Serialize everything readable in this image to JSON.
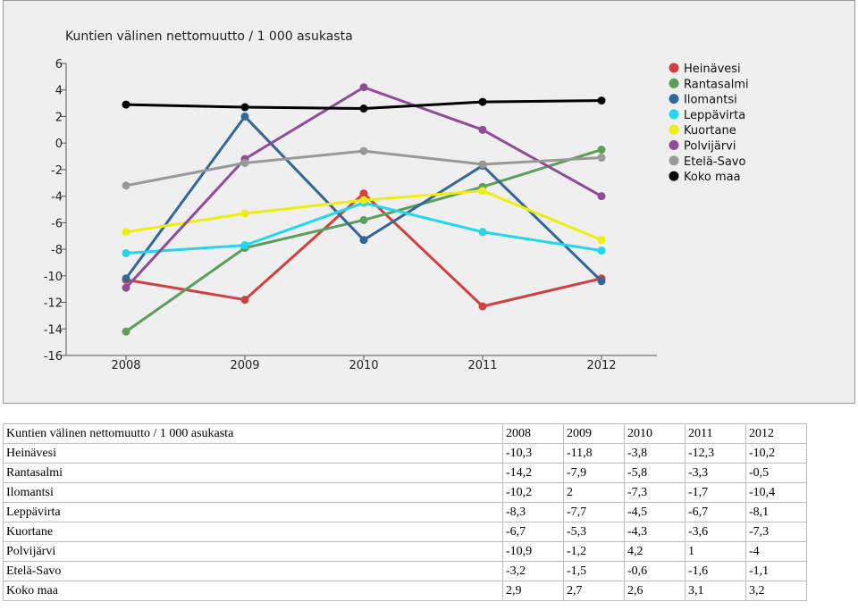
{
  "chart_data": {
    "type": "line",
    "title": "Kuntien välinen nettomuutto / 1 000 asukasta",
    "xlabel": "",
    "ylabel": "",
    "categories": [
      "2008",
      "2009",
      "2010",
      "2011",
      "2012"
    ],
    "ylim": [
      -16,
      6
    ],
    "yticks": [
      6,
      4,
      2,
      0,
      -2,
      -4,
      -6,
      -8,
      -10,
      -12,
      -14,
      -16
    ],
    "ytick_labels": [
      "6",
      "4",
      "2",
      "0",
      "-2",
      "-4",
      "-6",
      "-8",
      "-10",
      "-12",
      "-14",
      "-16"
    ],
    "grid": false,
    "legend_position": "top-right",
    "series": [
      {
        "name": "Heinävesi",
        "color": "#d04040",
        "values": [
          -10.3,
          -11.8,
          -3.8,
          -12.3,
          -10.2
        ]
      },
      {
        "name": "Rantasalmi",
        "color": "#5c9e5c",
        "values": [
          -14.2,
          -7.9,
          -5.8,
          -3.3,
          -0.5
        ]
      },
      {
        "name": "Ilomantsi",
        "color": "#336699",
        "values": [
          -10.2,
          2,
          -7.3,
          -1.7,
          -10.4
        ]
      },
      {
        "name": "Leppävirta",
        "color": "#22d6ec",
        "values": [
          -8.3,
          -7.7,
          -4.5,
          -6.7,
          -8.1
        ]
      },
      {
        "name": "Kuortane",
        "color": "#eeee10",
        "values": [
          -6.7,
          -5.3,
          -4.3,
          -3.6,
          -7.3
        ]
      },
      {
        "name": "Polvijärvi",
        "color": "#8e4d96",
        "values": [
          -10.9,
          -1.2,
          4.2,
          1,
          -4
        ]
      },
      {
        "name": "Etelä-Savo",
        "color": "#999999",
        "values": [
          -3.2,
          -1.5,
          -0.6,
          -1.6,
          -1.1
        ]
      },
      {
        "name": "Koko maa",
        "color": "#000000",
        "values": [
          2.9,
          2.7,
          2.6,
          3.1,
          3.2
        ]
      }
    ]
  },
  "table": {
    "header": [
      "Kuntien välinen nettomuutto / 1 000 asukasta",
      "2008",
      "2009",
      "2010",
      "2011",
      "2012"
    ],
    "rows": [
      [
        "Heinävesi",
        "-10,3",
        "-11,8",
        "-3,8",
        "-12,3",
        "-10,2"
      ],
      [
        "Rantasalmi",
        "-14,2",
        "-7,9",
        "-5,8",
        "-3,3",
        "-0,5"
      ],
      [
        "Ilomantsi",
        "-10,2",
        "2",
        "-7,3",
        "-1,7",
        "-10,4"
      ],
      [
        "Leppävirta",
        "-8,3",
        "-7,7",
        "-4,5",
        "-6,7",
        "-8,1"
      ],
      [
        "Kuortane",
        "-6,7",
        "-5,3",
        "-4,3",
        "-3,6",
        "-7,3"
      ],
      [
        "Polvijärvi",
        "-10,9",
        "-1,2",
        "4,2",
        "1",
        "-4"
      ],
      [
        "Etelä-Savo",
        "-3,2",
        "-1,5",
        "-0,6",
        "-1,6",
        "-1,1"
      ],
      [
        "Koko maa",
        "2,9",
        "2,7",
        "2,6",
        "3,1",
        "3,2"
      ]
    ]
  }
}
